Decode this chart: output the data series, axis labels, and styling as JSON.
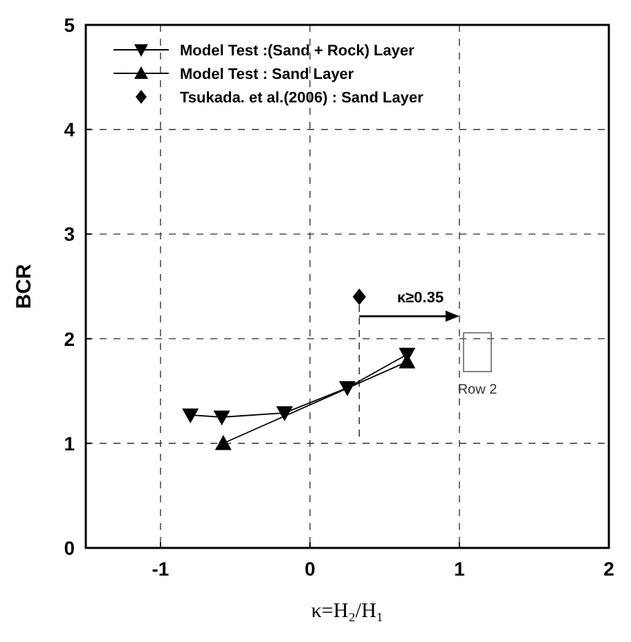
{
  "chart_data": {
    "type": "line",
    "xlabel": "κ=H₂/H₁",
    "ylabel": "BCR",
    "xlim": [
      -1.5,
      2
    ],
    "xticks": [
      -1,
      0,
      1,
      2
    ],
    "ylim": [
      0,
      5
    ],
    "yticks": [
      0,
      1,
      2,
      3,
      4,
      5
    ],
    "grid": true,
    "legend": "top left",
    "series": [
      {
        "name": "Model Test :(Sand + Rock) Layer",
        "color": "#000000",
        "marker": "triangle-down",
        "x": [
          -0.8,
          -0.59,
          -0.17,
          0.25,
          0.65
        ],
        "values": [
          1.27,
          1.25,
          1.29,
          1.53,
          1.85
        ]
      },
      {
        "name": "Model Test : Sand Layer",
        "color": "#000000",
        "marker": "triangle",
        "x": [
          -0.58,
          0.65
        ],
        "values": [
          1.0,
          1.78
        ]
      },
      {
        "name": "Tsukada. et al.(2006) : Sand Layer",
        "type": "scatter",
        "color": "#000000",
        "marker": "diamond",
        "x": [
          0.33
        ],
        "values": [
          2.4
        ]
      }
    ],
    "annotations": [
      "κ≥0.35",
      "Row 2"
    ]
  }
}
